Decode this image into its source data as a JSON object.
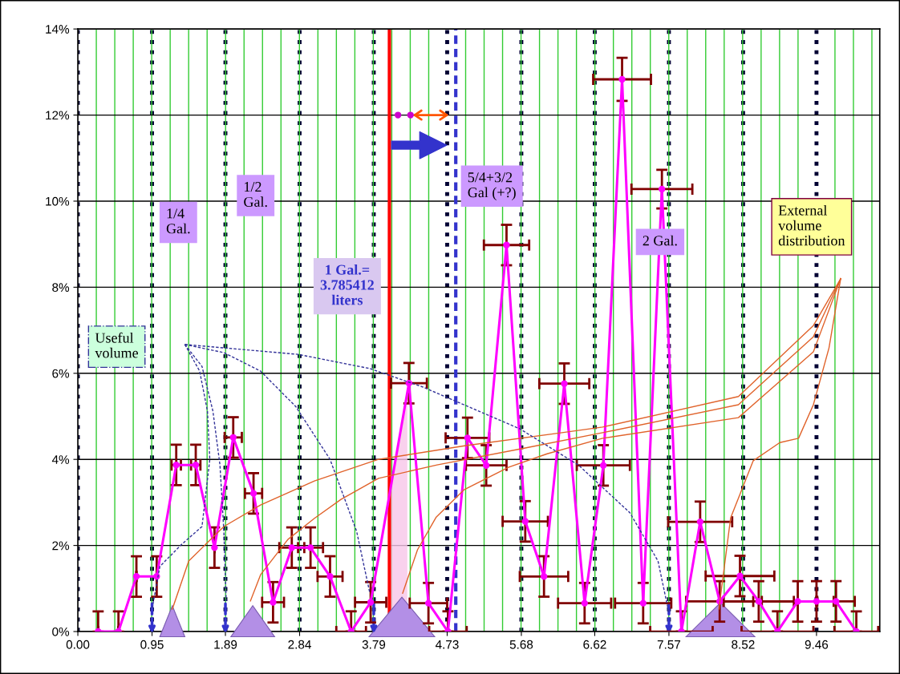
{
  "chart_data": {
    "type": "line",
    "xlim": [
      0,
      10.27
    ],
    "ylim": [
      0,
      14
    ],
    "xticks": [
      {
        "value": 0,
        "label": "0.00"
      },
      0.95,
      1.89,
      2.84,
      3.79,
      4.73,
      5.68,
      6.62,
      7.57,
      8.52,
      9.46
    ],
    "yticks": [
      {
        "value": 0,
        "label": "0%"
      },
      {
        "value": 2,
        "label": "2%"
      },
      {
        "value": 4,
        "label": "4%"
      },
      {
        "value": 6,
        "label": "6%"
      },
      {
        "value": 8,
        "label": "8%"
      },
      {
        "value": 10,
        "label": "10%"
      },
      {
        "value": 12,
        "label": "12%"
      },
      {
        "value": 14,
        "label": "14%"
      }
    ],
    "grid": true,
    "marker": "circle",
    "line_style": "solid",
    "series": [
      {
        "color": "#ff00ff",
        "x": [
          0.26,
          0.52,
          0.75,
          1.01,
          1.26,
          1.51,
          1.75,
          1.99,
          2.25,
          2.5,
          2.74,
          2.98,
          3.23,
          3.5,
          3.75,
          4.24,
          4.49,
          4.74,
          4.99,
          5.23,
          5.49,
          5.73,
          5.97,
          6.23,
          6.49,
          6.73,
          6.97,
          7.24,
          7.48,
          7.73,
          7.97,
          8.22,
          8.48,
          8.72,
          8.96,
          9.22,
          9.46,
          9.71,
          9.97
        ],
        "values": [
          0,
          0,
          1.28,
          1.28,
          3.87,
          3.87,
          1.95,
          4.51,
          3.21,
          0.68,
          1.95,
          1.95,
          1.28,
          0,
          0.68,
          5.77,
          0.66,
          0,
          4.5,
          3.86,
          8.98,
          2.56,
          1.28,
          5.76,
          0.66,
          3.86,
          12.83,
          0.66,
          10.28,
          0,
          2.55,
          0.7,
          1.29,
          0.7,
          0,
          0.7,
          0.7,
          0.7,
          0
        ],
        "errors": [
          [
            0,
            0.47
          ],
          [
            0,
            0.47
          ],
          0.47,
          0.47,
          0.47,
          0.47,
          0.47,
          0.47,
          0.47,
          0.47,
          0.47,
          0.47,
          0.47,
          [
            0,
            0.47
          ],
          0.47,
          0.47,
          0.47,
          [
            0,
            0.47
          ],
          0.47,
          0.47,
          0.47,
          0.47,
          0.47,
          0.47,
          0.47,
          0.47,
          0.5,
          0.47,
          0.45,
          [
            0,
            0.47
          ],
          0.47,
          0.47,
          0.47,
          0.47,
          [
            0,
            0.47
          ],
          0.47,
          0.47,
          0.47,
          [
            0,
            0.47
          ]
        ],
        "xerrors": [
          null,
          null,
          null,
          null,
          0.06,
          0.06,
          null,
          0.11,
          0.11,
          0.14,
          0.16,
          0.16,
          0.16,
          0.19,
          0.2,
          0.23,
          0.24,
          0.24,
          0.28,
          0.26,
          0.29,
          0.29,
          0.31,
          0.32,
          0.34,
          0.34,
          0.37,
          0.36,
          0.39,
          0.4,
          0.41,
          0.43,
          0.44,
          0.45,
          0.46,
          0.46,
          null,
          0.24,
          0.28
        ]
      },
      {
        "color": "#e0622a",
        "marker": "none",
        "x": [
          1.21,
          1.42,
          1.87,
          2.34,
          3.03,
          3.85,
          4.97,
          6.2,
          6.72,
          8.46,
          9.42,
          9.77
        ],
        "values": [
          0.52,
          1.64,
          2.44,
          2.94,
          3.5,
          4.0,
          4.32,
          4.62,
          4.75,
          5.46,
          7.11,
          8.2
        ]
      },
      {
        "color": "#e0622a",
        "marker": "none",
        "x": [
          2.21,
          2.34,
          2.69,
          3.03,
          3.37,
          3.85,
          4.6,
          5.69,
          6.72,
          8.46,
          9.42,
          9.77
        ],
        "values": [
          0.71,
          1.32,
          2.14,
          2.63,
          3.07,
          3.56,
          3.87,
          4.25,
          4.62,
          5.27,
          6.85,
          8.2
        ]
      },
      {
        "color": "#e0622a",
        "marker": "none",
        "x": [
          4.16,
          4.35,
          4.59,
          4.95,
          5.52,
          6.01,
          6.72,
          8.46,
          9.42,
          9.77
        ],
        "values": [
          0.89,
          1.9,
          2.66,
          3.3,
          3.82,
          4.13,
          4.49,
          4.97,
          6.5,
          8.2
        ]
      },
      {
        "color": "#e0622a",
        "marker": "none",
        "x": [
          8.21,
          8.36,
          8.65,
          8.99,
          9.23,
          9.42,
          9.62,
          9.77
        ],
        "values": [
          0.52,
          2.64,
          3.97,
          4.39,
          4.49,
          5.27,
          6.59,
          8.2
        ]
      },
      {
        "color": "#333399",
        "marker": "none",
        "line_style": "dashed",
        "x": [
          1.37,
          1.56,
          1.66,
          1.69,
          1.59,
          1.32,
          1.05,
          0.95
        ],
        "values": [
          6.67,
          6.05,
          5.12,
          4.0,
          2.44,
          2.01,
          1.51,
          0.52
        ]
      },
      {
        "color": "#333399",
        "marker": "none",
        "line_style": "dashed",
        "x": [
          1.37,
          1.59,
          1.73,
          1.82,
          1.87,
          1.9
        ],
        "values": [
          6.67,
          6.16,
          5.12,
          3.87,
          2.33,
          0.71
        ]
      },
      {
        "color": "#333399",
        "marker": "none",
        "line_style": "dashed",
        "x": [
          1.37,
          1.87,
          2.34,
          2.79,
          3.23,
          3.57,
          3.74
        ],
        "values": [
          6.67,
          6.48,
          6.05,
          5.23,
          4.0,
          2.33,
          0.89
        ]
      },
      {
        "color": "#333399",
        "marker": "none",
        "line_style": "dashed",
        "x": [
          1.37,
          2.82,
          3.74,
          4.42,
          5.66,
          6.41,
          7.07,
          7.43,
          7.57
        ],
        "values": [
          6.67,
          6.44,
          6.11,
          5.68,
          4.71,
          3.87,
          2.76,
          1.64,
          0.43
        ]
      }
    ],
    "ref_lines": [
      {
        "axis": "x",
        "value": 3.99,
        "color": "#ff0000",
        "line_style": "solid"
      },
      {
        "axis": "x",
        "value": 4.84,
        "color": "#3333cc",
        "line_style": "dashed"
      }
    ],
    "annotations": [
      "1/4\nGal.",
      "1/2\nGal.",
      "1 Gal.=\n3.785412\nliters",
      "5/4+3/2\nGal (+?)",
      "2 Gal.",
      "External\nvolume\ndistribution",
      "Useful\nvolume"
    ]
  }
}
